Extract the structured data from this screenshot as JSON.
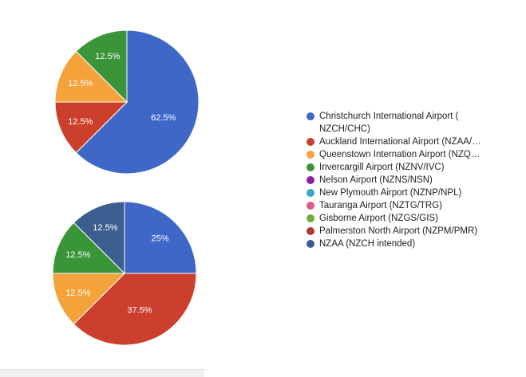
{
  "chart_data": [
    {
      "type": "pie",
      "slices": [
        {
          "label": "Christchurch International Airport ( NZCH/CHC)",
          "value": 62.5,
          "display": "62.5%",
          "color": "#3f67c7"
        },
        {
          "label": "Auckland International Airport (NZAA/…",
          "value": 12.5,
          "display": "12.5%",
          "color": "#cc3f2d"
        },
        {
          "label": "Queenstown Internation Airport (NZQ…",
          "value": 12.5,
          "display": "12.5%",
          "color": "#f3a33a"
        },
        {
          "label": "Invercargill Airport (NZNV/IVC)",
          "value": 12.5,
          "display": "12.5%",
          "color": "#3a9438"
        }
      ]
    },
    {
      "type": "pie",
      "slices": [
        {
          "label": "Christchurch International Airport ( NZCH/CHC)",
          "value": 25,
          "display": "25%",
          "color": "#3f67c7"
        },
        {
          "label": "Auckland International Airport (NZAA/…",
          "value": 37.5,
          "display": "37.5%",
          "color": "#cc3f2d"
        },
        {
          "label": "Queenstown Internation Airport (NZQ…",
          "value": 12.5,
          "display": "12.5%",
          "color": "#f3a33a"
        },
        {
          "label": "Invercargill Airport (NZNV/IVC)",
          "value": 12.5,
          "display": "12.5%",
          "color": "#3a9438"
        },
        {
          "label": "NZAA (NZCH intended)",
          "value": 12.5,
          "display": "12.5%",
          "color": "#3c5e8f"
        }
      ]
    }
  ],
  "legend": {
    "items": [
      {
        "label": "Christchurch International Airport ( NZCH/CHC)",
        "color": "#3f67c7"
      },
      {
        "label": "Auckland International Airport (NZAA/…",
        "color": "#cc3f2d"
      },
      {
        "label": "Queenstown Internation Airport (NZQ…",
        "color": "#f3a33a"
      },
      {
        "label": "Invercargill Airport (NZNV/IVC)",
        "color": "#3a9438"
      },
      {
        "label": "Nelson Airport (NZNS/NSN)",
        "color": "#8b1fa0"
      },
      {
        "label": "New Plymouth Airport (NZNP/NPL)",
        "color": "#3aa6cc"
      },
      {
        "label": "Tauranga Airport (NZTG/TRG)",
        "color": "#d95c84"
      },
      {
        "label": "Gisborne Airport (NZGS/GIS)",
        "color": "#6fae35"
      },
      {
        "label": "Palmerston North Airport (NZPM/PMR)",
        "color": "#b03733"
      },
      {
        "label": "NZAA (NZCH intended)",
        "color": "#3c5e8f"
      }
    ]
  }
}
